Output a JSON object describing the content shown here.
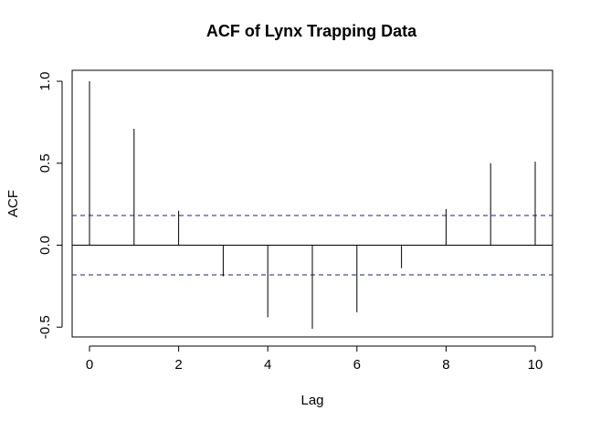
{
  "chart_data": {
    "type": "bar",
    "title": "ACF of Lynx Trapping Data",
    "xlabel": "Lag",
    "ylabel": "ACF",
    "x": [
      0,
      1,
      2,
      3,
      4,
      5,
      6,
      7,
      8,
      9,
      10
    ],
    "values": [
      1.0,
      0.71,
      0.21,
      -0.19,
      -0.44,
      -0.51,
      -0.41,
      -0.14,
      0.22,
      0.5,
      0.51
    ],
    "xlim": [
      0,
      10
    ],
    "ylim": [
      -0.5,
      1.0
    ],
    "x_ticks": [
      0,
      2,
      4,
      6,
      8,
      10
    ],
    "y_ticks": [
      -0.5,
      0.0,
      0.5,
      1.0
    ],
    "x_tick_labels": [
      "0",
      "2",
      "4",
      "6",
      "8",
      "10"
    ],
    "y_tick_labels": [
      "-0.5",
      "0.0",
      "0.5",
      "1.0"
    ],
    "confidence_band": 0.181,
    "zero_line": true,
    "grid": false,
    "colors": {
      "spike": "#000000",
      "confidence": "#1f1f7a",
      "axis": "#000000"
    }
  }
}
